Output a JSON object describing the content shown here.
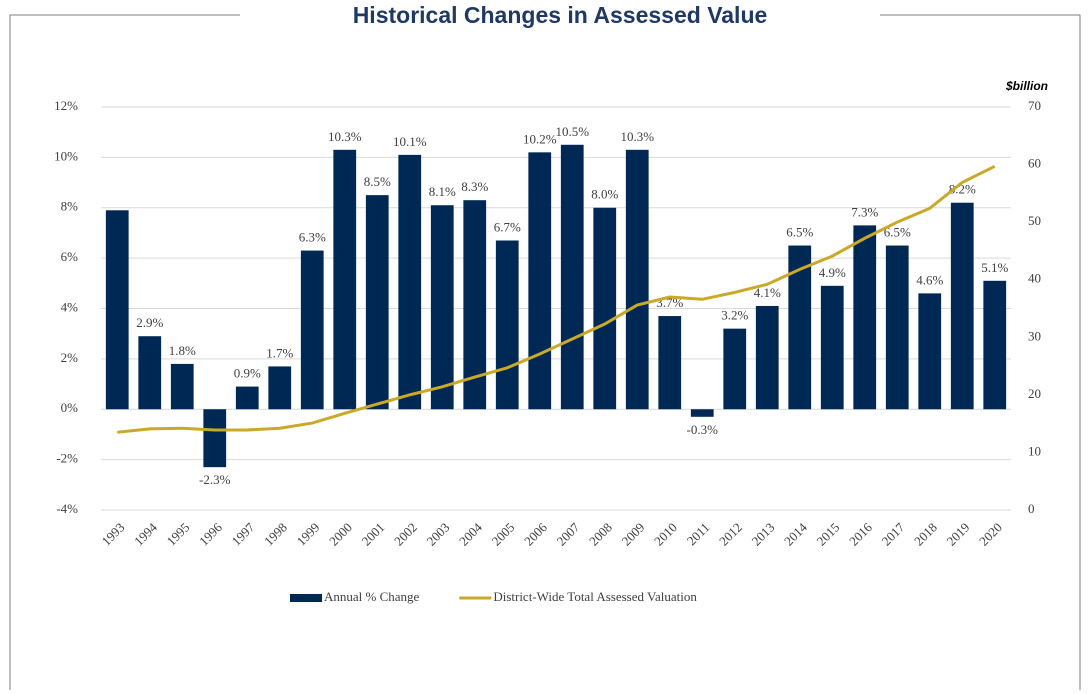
{
  "chart_data": {
    "type": "bar_line",
    "title": "Historical Changes in Assessed Value",
    "y2_label": "$billion",
    "categories": [
      "1993",
      "1994",
      "1995",
      "1996",
      "1997",
      "1998",
      "1999",
      "2000",
      "2001",
      "2002",
      "2003",
      "2004",
      "2005",
      "2006",
      "2007",
      "2008",
      "2009",
      "2010",
      "2011",
      "2012",
      "2013",
      "2014",
      "2015",
      "2016",
      "2017",
      "2018",
      "2019",
      "2020"
    ],
    "series": [
      {
        "name": "Annual % Change",
        "type": "bar",
        "color": "#002855",
        "values": [
          7.9,
          2.9,
          1.8,
          -2.3,
          0.9,
          1.7,
          6.3,
          10.3,
          8.5,
          10.1,
          8.1,
          8.3,
          6.7,
          10.2,
          10.5,
          8.0,
          10.3,
          3.7,
          -0.3,
          3.2,
          4.1,
          6.5,
          4.9,
          7.3,
          6.5,
          4.6,
          8.2,
          5.1
        ],
        "value_labels": [
          null,
          "2.9%",
          "1.8%",
          "-2.3%",
          "0.9%",
          "1.7%",
          "6.3%",
          "10.3%",
          "8.5%",
          "10.1%",
          "8.1%",
          "8.3%",
          "6.7%",
          "10.2%",
          "10.5%",
          "8.0%",
          "10.3%",
          "3.7%",
          "-0.3%",
          "3.2%",
          "4.1%",
          "6.5%",
          "4.9%",
          "7.3%",
          "6.5%",
          "4.6%",
          "8.2%",
          "5.1%"
        ]
      },
      {
        "name": "District-Wide Total Assessed Valuation",
        "type": "line",
        "axis": "y2",
        "color": "#c9a927",
        "values": [
          13.5,
          14.1,
          14.2,
          13.9,
          13.9,
          14.2,
          15.1,
          16.8,
          18.4,
          20.0,
          21.4,
          23.1,
          24.7,
          27.1,
          29.7,
          32.3,
          35.6,
          37.0,
          36.6,
          37.8,
          39.2,
          41.8,
          44.1,
          47.2,
          50.0,
          52.4,
          56.9,
          59.7
        ]
      }
    ],
    "ylim": [
      -4,
      12
    ],
    "yticks": [
      {
        "value": -4,
        "label": "-4%"
      },
      {
        "value": -2,
        "label": "-2%"
      },
      {
        "value": 0,
        "label": "0%"
      },
      {
        "value": 2,
        "label": "2%"
      },
      {
        "value": 4,
        "label": "4%"
      },
      {
        "value": 6,
        "label": "6%"
      },
      {
        "value": 8,
        "label": "8%"
      },
      {
        "value": 10,
        "label": "10%"
      },
      {
        "value": 12,
        "label": "12%"
      }
    ],
    "y2lim": [
      0,
      70
    ],
    "y2ticks": [
      0,
      10,
      20,
      30,
      40,
      50,
      60,
      70
    ],
    "grid": true,
    "legend": "bottom"
  }
}
